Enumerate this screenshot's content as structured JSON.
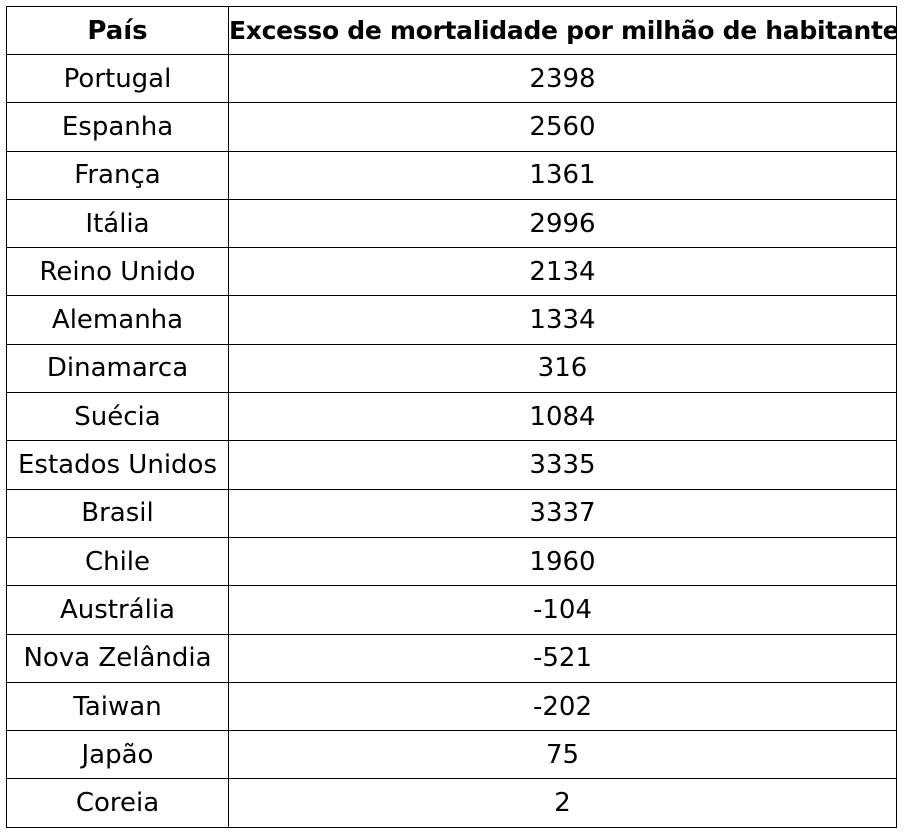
{
  "table": {
    "headers": [
      "País",
      "Excesso de mortalidade por milhão de habitantes"
    ],
    "rows": [
      {
        "country": "Portugal",
        "value": "2398"
      },
      {
        "country": "Espanha",
        "value": "2560"
      },
      {
        "country": "França",
        "value": "1361"
      },
      {
        "country": "Itália",
        "value": "2996"
      },
      {
        "country": "Reino Unido",
        "value": "2134"
      },
      {
        "country": "Alemanha",
        "value": "1334"
      },
      {
        "country": "Dinamarca",
        "value": "316"
      },
      {
        "country": "Suécia",
        "value": "1084"
      },
      {
        "country": "Estados Unidos",
        "value": "3335"
      },
      {
        "country": "Brasil",
        "value": "3337"
      },
      {
        "country": "Chile",
        "value": "1960"
      },
      {
        "country": "Austrália",
        "value": "-104"
      },
      {
        "country": "Nova Zelândia",
        "value": "-521"
      },
      {
        "country": "Taiwan",
        "value": "-202"
      },
      {
        "country": "Japão",
        "value": "75"
      },
      {
        "country": "Coreia",
        "value": "2"
      }
    ]
  }
}
